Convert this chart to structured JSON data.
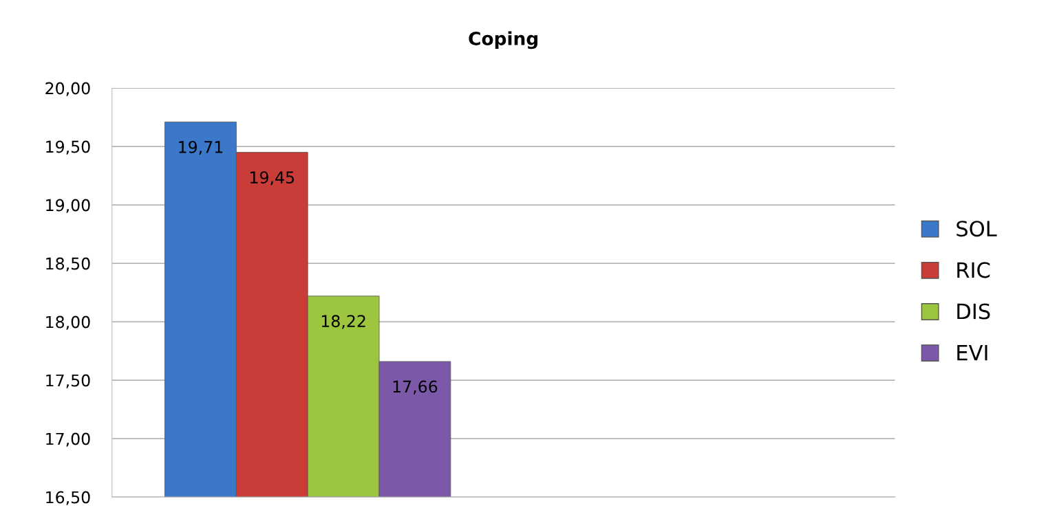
{
  "chart_data": {
    "type": "bar",
    "title": "Coping",
    "categories": [
      null,
      null
    ],
    "series": [
      {
        "name": "SOL",
        "color": "#3b78c9",
        "values": [
          19.71,
          null
        ],
        "value_labels": [
          "19,71",
          null
        ]
      },
      {
        "name": "RIC",
        "color": "#c93c37",
        "values": [
          19.45,
          null
        ],
        "value_labels": [
          "19,45",
          null
        ]
      },
      {
        "name": "DIS",
        "color": "#9cc640",
        "values": [
          18.22,
          null
        ],
        "value_labels": [
          "18,22",
          null
        ]
      },
      {
        "name": "EVI",
        "color": "#7c58a9",
        "values": [
          17.66,
          null
        ],
        "value_labels": [
          "17,66",
          null
        ]
      }
    ],
    "ylim": [
      16.5,
      20.0
    ],
    "yticks": [
      {
        "value": 16.5,
        "label": "16,50"
      },
      {
        "value": 17.0,
        "label": "17,00"
      },
      {
        "value": 17.5,
        "label": "17,50"
      },
      {
        "value": 18.0,
        "label": "18,00"
      },
      {
        "value": 18.5,
        "label": "18,50"
      },
      {
        "value": 19.0,
        "label": "19,00"
      },
      {
        "value": 19.5,
        "label": "19,50"
      },
      {
        "value": 20.0,
        "label": "20,00"
      }
    ],
    "grid": "y",
    "legend": "right",
    "tick_labels": "y"
  }
}
